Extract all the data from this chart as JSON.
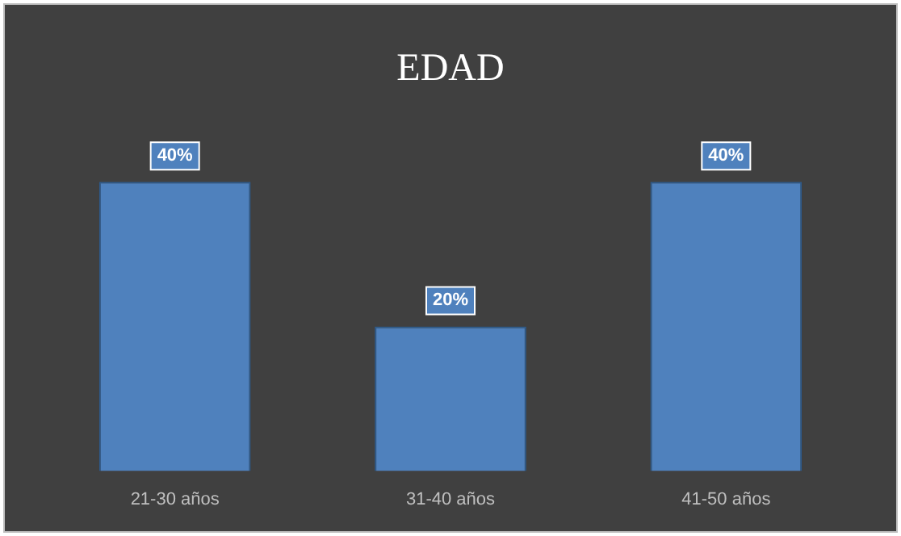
{
  "chart_data": {
    "type": "bar",
    "title": "EDAD",
    "categories": [
      "21-30 años",
      "31-40 años",
      "41-50 años"
    ],
    "values": [
      40,
      20,
      40
    ],
    "value_labels": [
      "40%",
      "20%",
      "40%"
    ],
    "color": "#4f81bd",
    "grid": false,
    "legend": false
  }
}
